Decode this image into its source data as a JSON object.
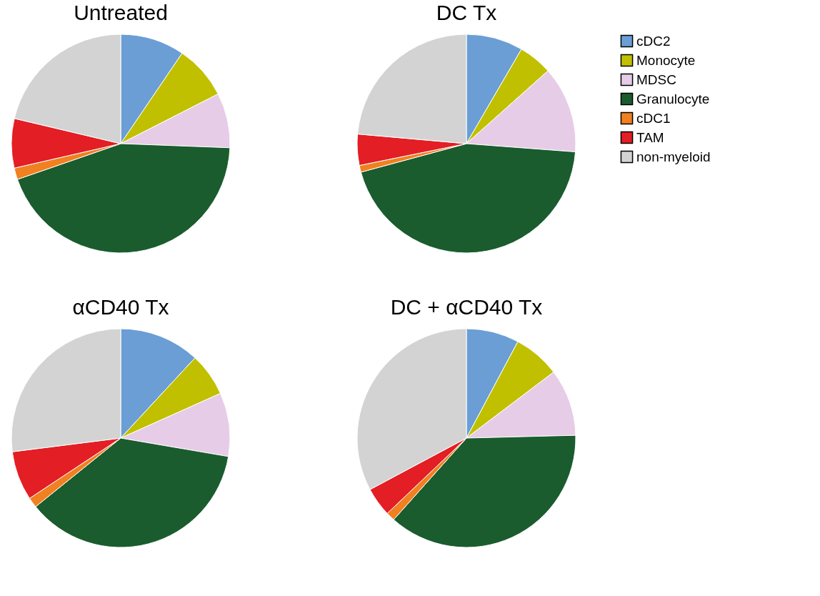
{
  "chart_data": [
    {
      "type": "pie",
      "title": "Untreated",
      "categories": [
        "cDC2",
        "Monocyte",
        "MDSC",
        "Granulocyte",
        "cDC1",
        "TAM",
        "non-myeloid"
      ],
      "values": [
        9.5,
        8.0,
        8.1,
        44.1,
        1.7,
        7.3,
        21.3
      ],
      "colors": [
        "#6a9ed5",
        "#c0c000",
        "#e6cce6",
        "#1a5c2e",
        "#f08020",
        "#e31e24",
        "#d3d3d3"
      ],
      "legend": "right"
    },
    {
      "type": "pie",
      "title": "DC Tx",
      "categories": [
        null,
        null,
        null,
        null,
        null,
        null,
        null
      ],
      "values": [
        8.4,
        5.0,
        12.8,
        44.6,
        1.0,
        4.6,
        23.6
      ],
      "colors": [
        "#6a9ed5",
        "#c0c000",
        "#e6cce6",
        "#1a5c2e",
        "#f08020",
        "#e31e24",
        "#d3d3d3"
      ]
    },
    {
      "type": "pie",
      "title": "αCD40 Tx",
      "categories": [
        null,
        null,
        null,
        null,
        null,
        null,
        null
      ],
      "values": [
        11.9,
        6.4,
        9.4,
        36.5,
        1.5,
        7.3,
        27.0
      ],
      "colors": [
        "#6a9ed5",
        "#c0c000",
        "#e6cce6",
        "#1a5c2e",
        "#f08020",
        "#e31e24",
        "#d3d3d3"
      ]
    },
    {
      "type": "pie",
      "title": "DC + αCD40 Tx",
      "categories": [
        null,
        null,
        null,
        null,
        null,
        null,
        null
      ],
      "values": [
        7.8,
        6.9,
        9.9,
        37.0,
        1.3,
        4.3,
        32.8
      ],
      "colors": [
        "#6a9ed5",
        "#c0c000",
        "#e6cce6",
        "#1a5c2e",
        "#f08020",
        "#e31e24",
        "#d3d3d3"
      ]
    }
  ]
}
